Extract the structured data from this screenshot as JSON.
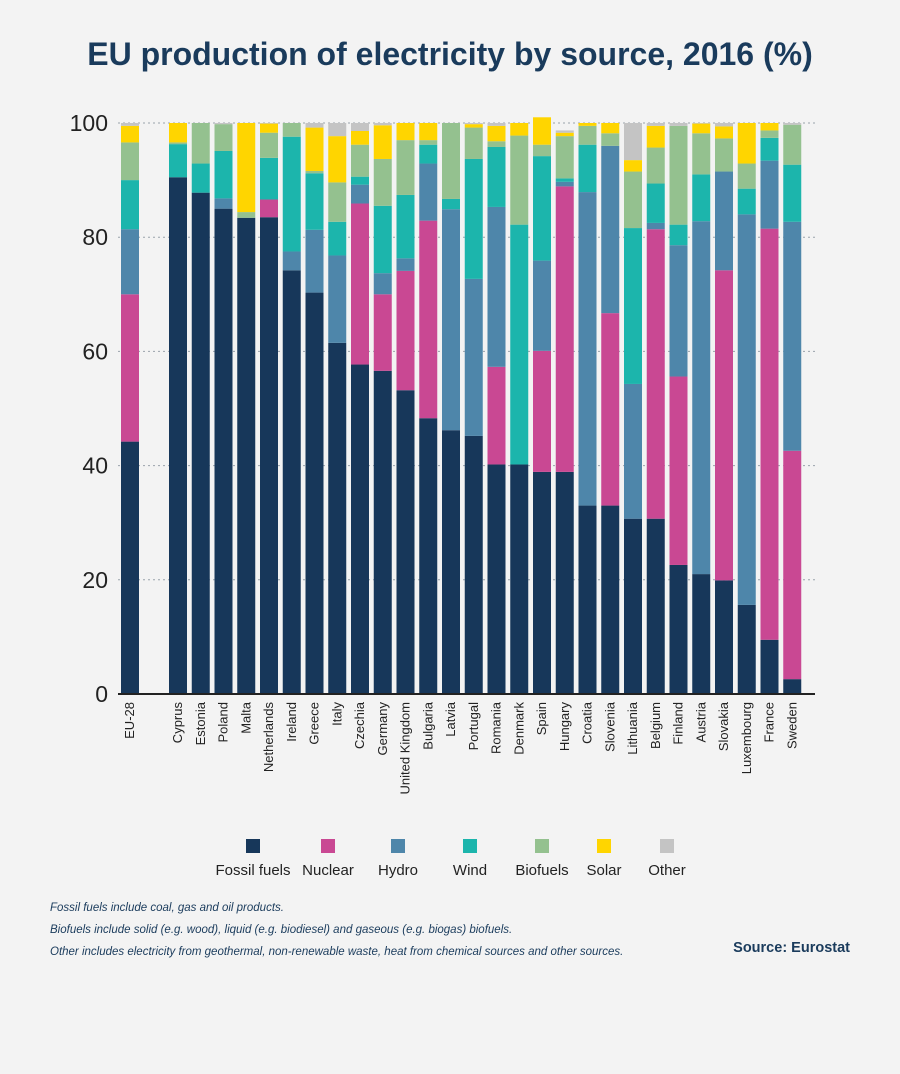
{
  "chart_data": {
    "type": "bar",
    "stacked": true,
    "title": "EU production of electricity by source, 2016 (%)",
    "xlabel": "",
    "ylabel": "",
    "ylim": [
      0,
      100
    ],
    "yticks": [
      "0",
      "20",
      "40",
      "60",
      "80",
      "100"
    ],
    "categories": [
      "EU-28",
      "Cyprus",
      "Estonia",
      "Poland",
      "Malta",
      "Netherlands",
      "Ireland",
      "Greece",
      "Italy",
      "Czechia",
      "Germany",
      "United Kingdom",
      "Bulgaria",
      "Latvia",
      "Portugal",
      "Romania",
      "Denmark",
      "Spain",
      "Hungary",
      "Croatia",
      "Slovenia",
      "Lithuania",
      "Belgium",
      "Finland",
      "Austria",
      "Slovakia",
      "Luxembourg",
      "France",
      "Sweden"
    ],
    "series": [
      {
        "name": "Fossil fuels",
        "color": "#17375a",
        "values": [
          44.2,
          90.5,
          87.8,
          85.0,
          83.4,
          83.5,
          74.2,
          70.3,
          61.5,
          57.7,
          56.6,
          53.2,
          48.3,
          46.2,
          45.2,
          40.2,
          40.2,
          38.9,
          38.9,
          33.0,
          33.0,
          30.7,
          30.7,
          22.6,
          21.0,
          19.9,
          15.6,
          9.5,
          2.6
        ]
      },
      {
        "name": "Nuclear",
        "color": "#c94893",
        "values": [
          25.8,
          0,
          0,
          0,
          0,
          3.1,
          0,
          0,
          0,
          28.2,
          13.4,
          20.9,
          34.6,
          0,
          0,
          17.1,
          0,
          21.2,
          50.0,
          0,
          33.7,
          0,
          50.7,
          33.0,
          0,
          54.3,
          0,
          72.0,
          40.0
        ]
      },
      {
        "name": "Hydro",
        "color": "#4e86aa",
        "values": [
          11.4,
          0,
          0,
          1.8,
          0,
          0,
          3.3,
          11.0,
          15.3,
          3.3,
          3.7,
          2.2,
          10.0,
          38.7,
          27.5,
          28.0,
          0,
          15.8,
          0.8,
          54.9,
          29.3,
          23.6,
          1.1,
          23.0,
          61.8,
          17.3,
          68.4,
          11.9,
          40.1
        ]
      },
      {
        "name": "Wind",
        "color": "#1cb5ac",
        "values": [
          8.6,
          5.8,
          5.1,
          8.3,
          0,
          7.3,
          20.1,
          9.9,
          5.9,
          1.4,
          11.8,
          11.1,
          3.3,
          1.8,
          21.0,
          10.5,
          42.0,
          18.3,
          0.6,
          8.3,
          0,
          27.3,
          6.9,
          3.6,
          8.2,
          0,
          4.5,
          4.0,
          10.0
        ]
      },
      {
        "name": "Biofuels",
        "color": "#94c18f",
        "values": [
          6.6,
          0.3,
          7.1,
          4.7,
          1.0,
          4.4,
          2.4,
          0.4,
          6.9,
          5.6,
          8.2,
          9.6,
          0.8,
          13.3,
          5.5,
          1.0,
          15.6,
          2.0,
          7.4,
          3.3,
          2.2,
          9.9,
          6.3,
          17.3,
          7.2,
          5.8,
          4.4,
          1.3,
          7.0
        ]
      },
      {
        "name": "Solar",
        "color": "#ffd500",
        "values": [
          2.9,
          3.4,
          0,
          0,
          15.6,
          1.6,
          0,
          7.6,
          8.1,
          2.4,
          5.9,
          3.0,
          3.0,
          0,
          0.6,
          2.7,
          2.2,
          4.8,
          0.6,
          0.5,
          1.8,
          2.0,
          3.8,
          0,
          1.7,
          2.1,
          7.1,
          1.3,
          0
        ]
      },
      {
        "name": "Other",
        "color": "#c4c4c4",
        "values": [
          0.5,
          0,
          0,
          0.2,
          0,
          0.1,
          0,
          0.8,
          2.3,
          1.4,
          0.4,
          0,
          0,
          0,
          0.2,
          0.5,
          0,
          0,
          0.4,
          0,
          0,
          6.5,
          0.5,
          0.5,
          0.1,
          0.6,
          0,
          0,
          0.3
        ]
      }
    ]
  },
  "footnotes": [
    "Fossil fuels include coal, gas and oil products.",
    "Biofuels include solid (e.g. wood), liquid (e.g. biodiesel) and gaseous (e.g. biogas) biofuels.",
    "Other includes electricity from geothermal, non-renewable waste, heat from chemical sources and other sources."
  ],
  "source": "Source: Eurostat"
}
